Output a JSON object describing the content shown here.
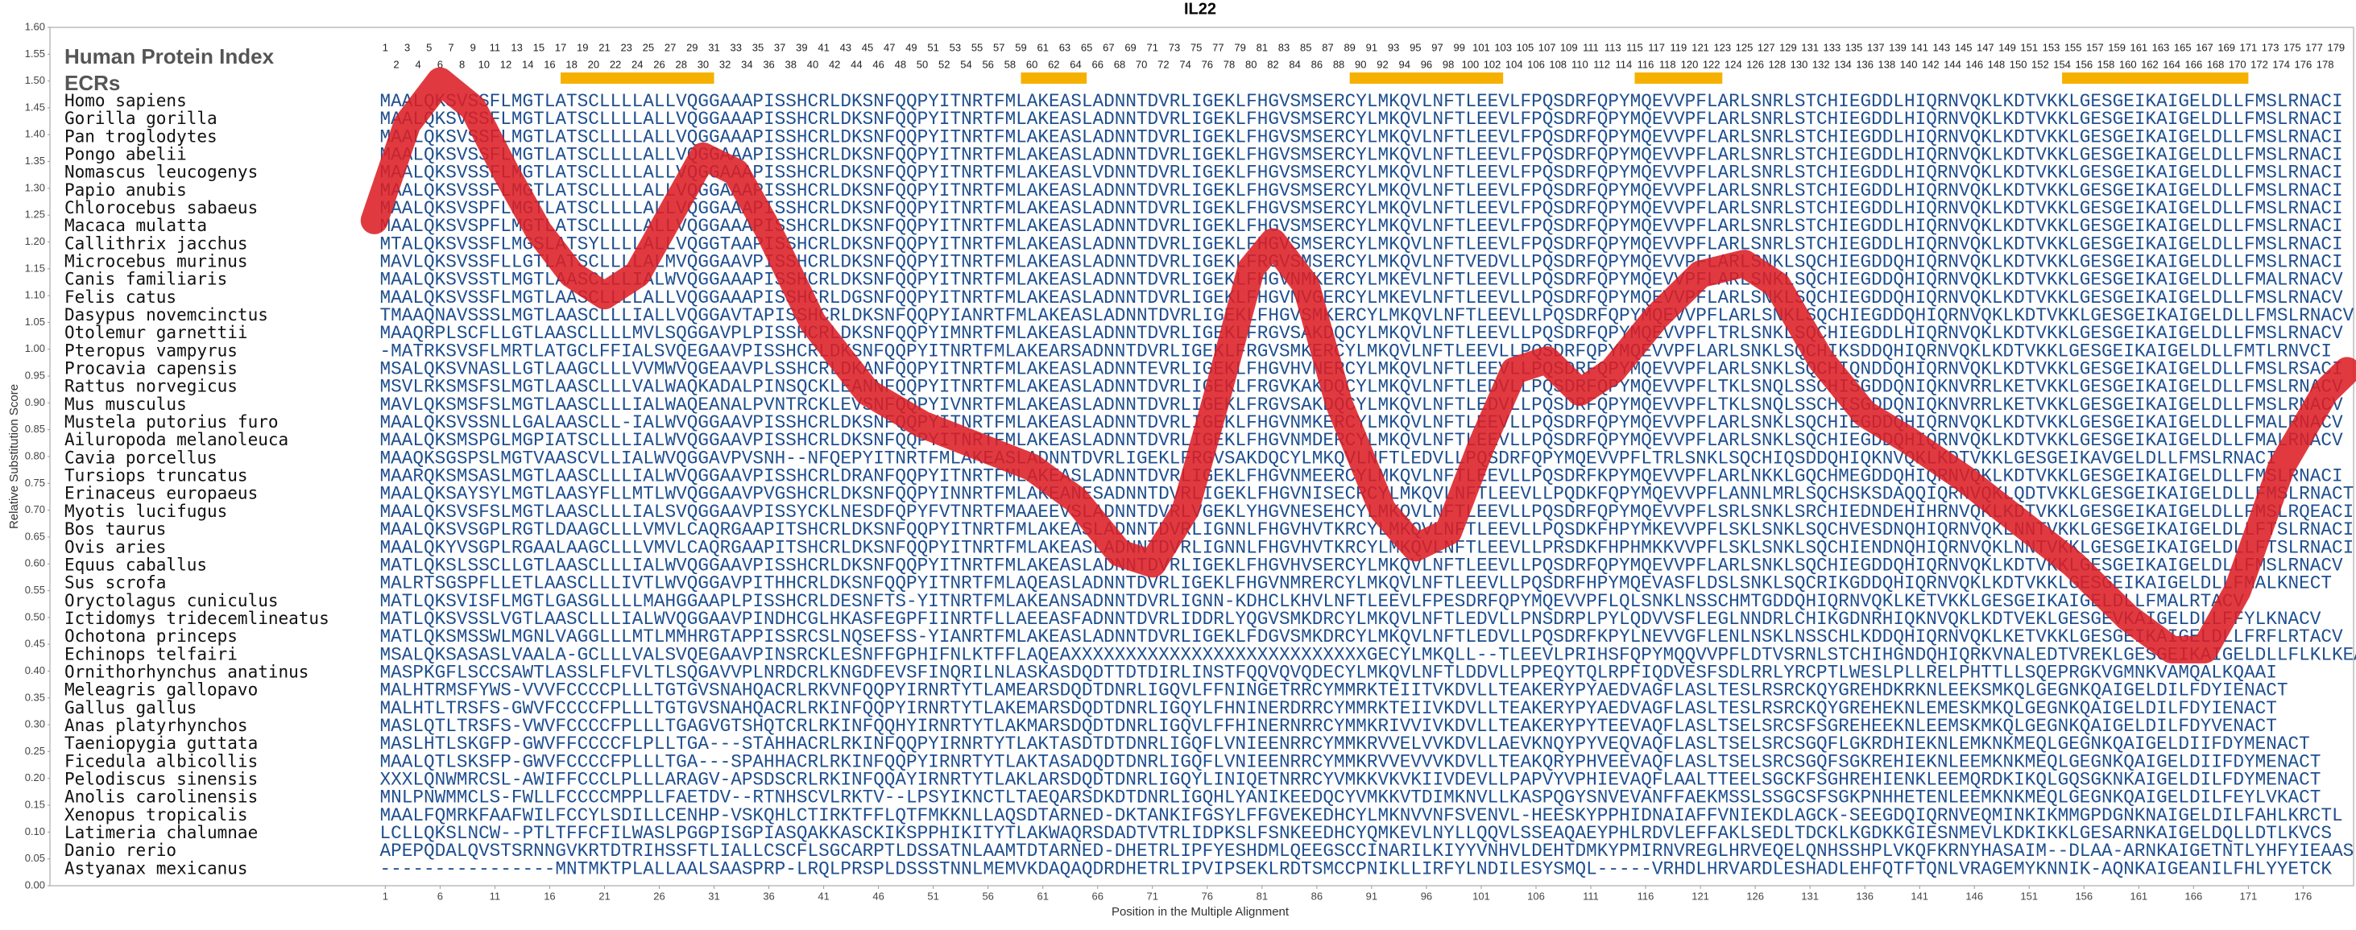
{
  "chart_data": {
    "type": "line",
    "title": "IL22",
    "y_label": "Relative Substitution Score",
    "x_label": "Position in the Multiple Alignment",
    "index_label": "Human Protein Index",
    "ecr_label": "ECRs",
    "color": "#dc1f26",
    "ecr_color": "#f6b100",
    "sequence_color": "#1f4f8f",
    "xlim": [
      -29.6,
      180.6
    ],
    "ylim": [
      0,
      1.6
    ],
    "xticks": [
      1,
      6,
      11,
      16,
      21,
      26,
      31,
      36,
      41,
      46,
      51,
      56,
      61,
      66,
      71,
      76,
      81,
      86,
      91,
      96,
      101,
      106,
      111,
      116,
      121,
      126,
      131,
      136,
      141,
      146,
      151,
      156,
      161,
      166,
      171,
      176
    ],
    "yticks": [
      {
        "value": 0,
        "label": "0.00"
      },
      {
        "value": 0.05,
        "label": "0.05"
      },
      {
        "value": 0.1,
        "label": "0.10"
      },
      {
        "value": 0.15,
        "label": "0.15"
      },
      {
        "value": 0.2,
        "label": "0.20"
      },
      {
        "value": 0.25,
        "label": "0.25"
      },
      {
        "value": 0.3,
        "label": "0.30"
      },
      {
        "value": 0.35,
        "label": "0.35"
      },
      {
        "value": 0.4,
        "label": "0.40"
      },
      {
        "value": 0.45,
        "label": "0.45"
      },
      {
        "value": 0.5,
        "label": "0.50"
      },
      {
        "value": 0.55,
        "label": "0.55"
      },
      {
        "value": 0.6,
        "label": "0.60"
      },
      {
        "value": 0.65,
        "label": "0.65"
      },
      {
        "value": 0.7,
        "label": "0.70"
      },
      {
        "value": 0.75,
        "label": "0.75"
      },
      {
        "value": 0.8,
        "label": "0.80"
      },
      {
        "value": 0.85,
        "label": "0.85"
      },
      {
        "value": 0.9,
        "label": "0.90"
      },
      {
        "value": 0.95,
        "label": "0.95"
      },
      {
        "value": 1,
        "label": "1.00"
      },
      {
        "value": 1.05,
        "label": "1.05"
      },
      {
        "value": 1.1,
        "label": "1.10"
      },
      {
        "value": 1.15,
        "label": "1.15"
      },
      {
        "value": 1.2,
        "label": "1.20"
      },
      {
        "value": 1.25,
        "label": "1.25"
      },
      {
        "value": 1.3,
        "label": "1.30"
      },
      {
        "value": 1.35,
        "label": "1.35"
      },
      {
        "value": 1.4,
        "label": "1.40"
      },
      {
        "value": 1.45,
        "label": "1.45"
      },
      {
        "value": 1.5,
        "label": "1.50"
      },
      {
        "value": 1.55,
        "label": "1.55"
      },
      {
        "value": 1.6,
        "label": "1.60"
      }
    ],
    "column_labels": [
      1,
      2,
      3,
      4,
      5,
      6,
      7,
      8,
      9,
      10,
      11,
      12,
      13,
      14,
      15,
      16,
      17,
      18,
      19,
      20,
      21,
      22,
      23,
      24,
      25,
      26,
      27,
      28,
      29,
      30,
      31,
      32,
      33,
      34,
      35,
      36,
      37,
      38,
      39,
      40,
      41,
      42,
      43,
      44,
      45,
      46,
      47,
      48,
      49,
      50,
      51,
      52,
      53,
      54,
      55,
      56,
      57,
      58,
      59,
      60,
      61,
      62,
      63,
      64,
      65,
      66,
      67,
      68,
      69,
      70,
      71,
      72,
      73,
      74,
      75,
      76,
      77,
      78,
      79,
      80,
      81,
      82,
      83,
      84,
      85,
      86,
      87,
      88,
      89,
      90,
      91,
      92,
      93,
      94,
      95,
      96,
      97,
      98,
      99,
      100,
      101,
      102,
      103,
      104,
      105,
      106,
      107,
      108,
      109,
      110,
      111,
      112,
      113,
      114,
      115,
      116,
      117,
      118,
      119,
      120,
      121,
      122,
      123,
      124,
      125,
      126,
      127,
      128,
      129,
      130,
      131,
      132,
      133,
      134,
      135,
      136,
      137,
      138,
      139,
      140,
      141,
      142,
      143,
      144,
      145,
      146,
      147,
      148,
      149,
      150,
      151,
      152,
      153,
      154,
      155,
      156,
      157,
      158,
      159,
      160,
      161,
      162,
      163,
      164,
      165,
      166,
      167,
      168,
      169,
      170,
      171,
      172,
      173,
      174,
      175,
      176,
      177,
      178,
      179
    ],
    "ecrs": [
      [
        17,
        31
      ],
      [
        59,
        65
      ],
      [
        89,
        103
      ],
      [
        115,
        123
      ],
      [
        154,
        171
      ]
    ],
    "x": [
      0,
      3,
      6,
      9,
      12,
      15,
      18,
      21,
      24,
      27,
      30,
      33,
      36,
      40,
      45,
      50,
      55,
      60,
      64,
      68,
      71,
      74,
      77,
      80,
      82,
      85,
      88,
      92,
      95,
      98,
      101,
      104,
      107,
      110,
      113,
      117,
      121,
      125,
      128,
      132,
      136,
      140,
      145,
      150,
      155,
      160,
      164,
      167,
      170,
      174,
      178,
      180
    ],
    "values": [
      1.24,
      1.42,
      1.5,
      1.45,
      1.33,
      1.22,
      1.14,
      1.1,
      1.14,
      1.25,
      1.36,
      1.33,
      1.22,
      1.05,
      0.92,
      0.86,
      0.82,
      0.78,
      0.72,
      0.62,
      0.6,
      0.7,
      0.92,
      1.15,
      1.2,
      1.12,
      0.9,
      0.7,
      0.63,
      0.66,
      0.82,
      0.96,
      0.98,
      0.92,
      0.96,
      1.06,
      1.14,
      1.16,
      1.12,
      0.98,
      0.88,
      0.83,
      0.76,
      0.68,
      0.6,
      0.5,
      0.44,
      0.44,
      0.55,
      0.78,
      0.92,
      0.96
    ],
    "alignment": [
      {
        "species": "Homo sapiens",
        "sequence": "MAALQKSVSSFLMGTLATSCLLLLALLVQGGAAAPISSHCRLDKSNFQQPYITNRTFMLAKEASLADNNTDVRLIGEKLFHGVSMSERCYLMKQVLNFTLEEVLFPQSDRFQPYMQEVVPFLARLSNRLSTCHIEGDDLHIQRNVQKLKDTVKKLGESGEIKAIGELDLLFMSLRNACI"
      },
      {
        "species": "Gorilla gorilla",
        "sequence": "MAALQKSVSSFLMGTLATSCLLLLALLVQGGAAAPISSHCRLDKSNFQQPYITNRTFMLAKEASLADNNTDVRLIGEKLFHGVSMSERCYLMKQVLNFTLEEVLFPQSDRFQPYMQEVVPFLARLSNRLSTCHIEGDDLHIQRNVQKLKDTVKKLGESGEIKAIGELDLLFMSLRNACI"
      },
      {
        "species": "Pan troglodytes",
        "sequence": "MAALQKSVSSFLMGTLATSCLLLLALLVQGGAAAPISSHCRLDKSNFQQPYITNRTFMLAKEASLADNNTDVRLIGEKLFHGVSMSERCYLMKQVLNFTLEEVLFPQSDRFQPYMQEVVPFLARLSNRLSTCHIEGDDLHIQRNVQKLKDTVKKLGESGEIKAIGELDLLFMSLRNACI"
      },
      {
        "species": "Pongo abelii",
        "sequence": "MAALQKSVSSFLMGTLATSCLLLLALLVQGGAAAPISSHCRLDKSNFQQPYITNRTFMLAKEASLADNNTDVRLIGEKLFHGVSMSERCYLMKQVLNFTLEEVLFPQSDRFQPYMQEVVPFLARLSNRLSTCHIEGDDLHIQRNVQKLKDTVKKLGESGEIKAIGELDLLFMSLRNACI"
      },
      {
        "species": "Nomascus leucogenys",
        "sequence": "MAALQKSVSSFLMGTLATSCLLLLALLVQGGAAAPISSHCRLDKSNFQQPYITNRTFMLAKEASLVDNNTDVRLIGEKLFHGVSMSERCYLMKQVLNFTLEEVLFPQSDRFQPYMQEVVPFLARLSNRLSTCHIEGDDLHIQRNVQKLKDTVKKLGESGEIKAIGELDLLFMSLRNACI"
      },
      {
        "species": "Papio anubis",
        "sequence": "MAALQKSVSSFLMGTLATSCLLLLALLVQGGAAAPISSHCRLDKSNFQQPYITNRTFMLAKEASLADNNTDVRLIGEKLFHGVSMSERCYLMKQVLNFTLEEVLFPQSDRFQPYMQEVVPFLARLSNRLSTCHIEGDDLHIQRNVQKLKDTVKKLGESGEIKAIGELDLLFMSLRNACI"
      },
      {
        "species": "Chlorocebus sabaeus",
        "sequence": "MAALQKSVSPFLMGTLATSCLLLLALLVQGGAAAPISSHCRLDKSNFQQPYITNRTFMLAKEASLADNNTDVRLIGEKLFHGVSMSERCYLMKQVLNFTLEEVLFPQSDRFQPYMQEVVPFLARLSNRLSTCHIEGDDLHIQRNVQKLKDTVKKLGESGEIKAIGELDLLFMSLRNACI"
      },
      {
        "species": "Macaca mulatta",
        "sequence": "MAALQKSVSPFLMGTLATSCLLLLALLVQGGAAAPISSHCRLDKSNFQQPYITNRTFMLAKEASLADNNTDVRLIGEKLFHGVSMSERCYLMKQVLNFTLEEVLFPQSDRFQPYMQEVVPFLARLSNRLSTCHIEGDDLHIQRNVQKLKDTVKKLGESGEIKAIGELDLLFMSLRNACI"
      },
      {
        "species": "Callithrix jacchus",
        "sequence": "MTALQKSVSSFLMGSLATSYLLLLALLVQGGTAAPISSHCRLDKSNFQQPYITNRTFMLAKEASLADNNTDVRLIGEKLFHGVSMSERCYLMKQVLNFTLEEVLFPQSDRFQPYMQEVVPFLARLSNRLSTCHIEGDDLHIQRNVQKLKDTVKKLGESGEIKAIGELDLLFMSLRNACI"
      },
      {
        "species": "Microcebus murinus",
        "sequence": "MAVLQKSVSSFLLGTLATSCLLLLALMVQGGAAVPISSHCRLDKSNFQQPYITNRTFMLAKEASLADNNTDVRLIGEKLFRGVSMSERCYLMKQVLNFTVEDVLLPQSDRFQPYMQEVVPFLARLSNKLSQCHIEGDDQHIQRNVQKLKDTVKKLGESGEIKAIGELDLLFMSLRNACI"
      },
      {
        "species": "Canis familiaris",
        "sequence": "MAALQKSVSSTLMGTLAASCLLLIALWVQGGAAAPISSHCRLDKSNFQQPYITNRTFMLAKEASLADNNTDVRLIGEKLFHGVNMKERCYLMKEVLNFTLEEVLLPQSDRFQPYMQEVVPFLARLSNKLSQCHIEGDDQHIQRNVQKLKDTVKKLGESGEIKAIGELDLLFMALRNACV"
      },
      {
        "species": "Felis catus",
        "sequence": "MAALQKSVSSFLMGTLAASCLLLLALLVQGGAAAPISSHCRLDGSNFQQPYITNRTFMLAKEASLADNNTDVRLIGEKLFHGVNVGERCYLMKEVLNFTLEEVLLPQSDRFQPYMQEVVPFLARLSNKLSQCHIEGDDQHIQRNVQKLKDTVKKLGESGEIKAIGELDLLFMSLRNACV"
      },
      {
        "species": "Dasypus novemcinctus",
        "sequence": "TMAAQNAVSSSLMGTLAASCLLLIALLVQGGAVTAPISSHCRLDKSNFQQPYIANRTFMLAKEASLADNNTDVRLIGEKLFHGVSMKERCYLMKQVLNFTLEEVLLPQSDRFQPYMQEVVPFLARLSNKLSQCHIEGDDQHIQRNVQKLKDTVKKLGESGEIKAIGELDLLFMSLRNACV"
      },
      {
        "species": "Otolemur garnettii",
        "sequence": "MAAQRPLSCFLLGTLAASCLLLLMVLSQGGAVPLPISSHCRLDKSNFQQPYIMNRTFMLAKEASLADNNTDVRLIGEKLFRGVSAKDQCYLMKQVLNFTLEEVLLPQSDRFQPYMQEVVPFLTRLSNKLSQCHIEGDDLHIQRNVQKLKDTVKKLGESGEIKAIGELDLLFMSLRNACV"
      },
      {
        "species": "Pteropus vampyrus",
        "sequence": "-MATRKSVSFLMRTLATGCLFFIALSVQEGAAVPISSHCRLDKSNFQQPYITNRTFMLAKEARSADNNTDVRLIGEKLFRGVSMKERCYLMKQVLNFTLEEVLLPQSDRFQPYMQEVVPFLARLSNKLSQCHIKSDDQHIQRNVQKLKDTVKKLGESGEIKAIGELDLLFMTLRNVCI"
      },
      {
        "species": "Procavia capensis",
        "sequence": "MSALQKSVNASLLGTLAAGCLLLVVMWVQGEAAVPLSSHCRLDKANFQQPYITNRTFMLAKEASLADNNTEVRLIGEKLFHGVHVNERCYLMKQVLNFTLEEVLLPQSDRFQPYMQEVVPFLARLSNKLSQCHIQNDDQHIQRNVQKLKDTVKKLGESGEIKAIGELDLLFMSLRSACI"
      },
      {
        "species": "Rattus norvegicus",
        "sequence": "MSVLRKSMSFSLMGTLAASCLLLVALWAQKADALPINSQCKLEANNFQQPYITNRTFMLAKEASLADNNTDVRLIGEKLFRGVKAKDQCYLMKQVLNFTLEDVLLPQSDRFQPYMQEVVPFLTKLSNQLSSCHISGDDQNIQKNVRRLKETVKKLGESGEIKAIGELDLLFMSLRNACV"
      },
      {
        "species": "Mus musculus",
        "sequence": "MAVLQKSMSFSLMGTLAASCLLLIALWAQEANALPVNTRCKLEVSNFQQPYIVNRTFMLAKEASLADNNTDVRLIGEKLFRGVSAKDQCYLMKQVLNFTLEDVLLPQSDRFQPYMQEVVPFLTKLSNQLSSCHISGDDQNIQKNVRRLKETVKKLGESGEIKAIGELDLLFMSLRNACV"
      },
      {
        "species": "Mustela putorius furo",
        "sequence": "MAALQKSVSSNLLGALAASCLL-IALWVQGGAAVPISSHCRLDKSNFQQPYITNRTFMLAKEASLADNNTDVRLIGEKLFHGVNMKERCYLMKQVLNFTLEEVLLPQSDRFQPYMQEVVPFLARLSNKLSQCHIEGDDQHIQRNVQKLKDTVKKLGESGEIKAIGELDLLFMALRNACV"
      },
      {
        "species": "Ailuropoda melanoleuca",
        "sequence": "MAALQKSMSPGLMGPIATSCLLLIALWVQGGAAVPISSHCRLDKSNFQQPYITNRTFMLAKEASLADNNTDVRLIGEKLFHGVNMDERCYLMKQVLNFTLEEVLLPQSDRFQPYMQEVVPFLARLSNKLSQCHIEGDDQHIQRNVQKLKDTVKKLGESGEIKAIGELDLLFMALRNACV"
      },
      {
        "species": "Cavia porcellus",
        "sequence": "MAAQKSGSPSLMGTVAASCVLLIALWVQGGAVPVSNH--NFQEPYITNRTFMLAKEASLADNNTDVRLIGEKLFRGVSAKDQCYLMKQVLNFTLEDVLLPQSDRFQPYMQEVVPFLTRLSNKLSQCHIQSDDQHIQKNVQKLKDTVKKLGESGEIKAVGELDLLFMSLRNACI"
      },
      {
        "species": "Tursiops truncatus",
        "sequence": "MAARQKSMSASLMGTLAASCLLLIALWVQGGAAVPISSHCRLDRANFQQPYITNRTFMLAKEASLADNNTDVRLIGEKLFHGVNMEERCYLMKQVLNFTLEEVLLPQSDRFKPYMQEVVPFLARLNKKLGQCHMEGDDQHIQRNVQKLKDTVKKLGESGEIKAIGELDLLFMSLRNACI"
      },
      {
        "species": "Erinaceus europaeus",
        "sequence": "MAALQKSAYSYLMGTLAASYFLLMTLWVQGGAAVPVGSHCRLDKSNFQQPYINNRTFMLAKEANESADNNTDVRLIGEKLFHGVNISECRCYLMKQVLNFTLEEVLLPQDKFQPYMQEVVPFLANNLMRLSQCHSKSDAQQIQRNVQKLQDTVKKLGESGEIKAIGELDLLFMSLRNACT"
      },
      {
        "species": "Myotis lucifugus",
        "sequence": "MAALQKSVSFSLMGTLAASCLLLIALSVQGGAAVPISSYCKLNESDFQPYFVTNRTFMAAEEVSLADNNTDVRLVGEKLYHGVNESEHCYLMKQVLNFTLEEVLLPQSDRFQPYMQEVVPFLSRLSNKLSRCHIEDNDEHIHRNVQKLKDTVKKLGESGEIKAIGELDLLFMSLRQEACI"
      },
      {
        "species": "Bos taurus",
        "sequence": "MAALQKSVSGPLRGTLDAAGCLLLVMVLCAQRGAAPITSHCRLDKSNFQQPYITNRTFMLAKEASLADNNTDVRLIGNNLFHGVHVTKRCYLMKQVLNFTLEEVLLPQSDKFHPYMKEVVPFLSKLSNKLSQCHVESDNQHIQRNVQKLNNTVKKLGESGEIKAIGELDLLFTSLRNACI"
      },
      {
        "species": "Ovis aries",
        "sequence": "MAALQKYVSGPLRGAALAAGCLLLVMVLCAQRGAAPITSHCRLDKSNFQQPYITNRTFMLAKEASLADNNTDVRLIGNNLFHGVHVTKRCYLMKQVLNFTLEEVLLPRSDKFHPHMKKVVPFLSKLSNKLSQCHIENDNQHIQRNVQKLNNTVKKLGESGEIKAIGELDLLFTSLRNACI"
      },
      {
        "species": "Equus caballus",
        "sequence": "MATLQKSLSSCLLGTLAASCLLLIALWVQGGAAVPISSHCRLDKSNFQQPYITNRTFMLAKEASLADNNTDVRLIGEKLFHGVHVSERCYLMKQVLNFTLEEVLLPQSDRFQPYMQEVVPFLARLSNKLSQCHIEGDDQHIQRNVQKLKDTVKKLGESGEIKAIGELDLLFMSLRNACV"
      },
      {
        "species": "Sus scrofa",
        "sequence": "MALRTSGSPFLLETLAASCLLLIVTLWVQGGAVPITHHCRLDKSNFQQPYITNRTFMLAQEASLADNNTDVRLIGEKLFHGVNMRERCYLMKQVLNFTLEEVLLPQSDRFHPYMQEVASFLDSLSNKLSQCRIKGDDQHIQRNVQKLKDTVKKLGESGEIKAIGELDLLFMALKNECT"
      },
      {
        "species": "Oryctolagus cuniculus",
        "sequence": "MATLQKSVISFLMGTLGASGLLLLMAHGGAAPLPISSHCRLDESNFTS-YITNRTFMLAKEANSADNNTDVRLIGNN-KDHCLKHVLNFTLEEVLFPESDRFQPYMQEVVPFLQLSNKLNSSCHMTGDDQHIQRNVQKLKETVKKLGESGEIKAIGELDLLFMALRTACV"
      },
      {
        "species": "Ictidomys tridecemlineatus",
        "sequence": "MATLQKSVSSLVGTLAASCLLLIALWVQGGAAVPINDHCGLHKASFEGPFIINRTFLLAEEASFADNNTDVRLIDDRLYQGVSMKDRCYLMKQVLNFTLEDVLLPNSDRPLPYLQDVVSFLEGLNNDRLCHIKGDNRHIQKNVQKLKDTVEKLGESGEVKAIGELDLLFFYLKNACV"
      },
      {
        "species": "Ochotona princeps",
        "sequence": "MATLQKSMSSWLMGNLVAGGLLLMTLMMHRGTAPPISSRCSLNQSEFSS-YIANRTFMLAKEASLADNNTDVRLIGEKLFDGVSMKDRCYLMKQVLNFTLEDVLLPQSDRFKPYLNEVVGFLENLNSKLNSSCHLKDDQHIQRNVQKLKETVKKLGESGEIKAIGELDLLFRFLRTACV"
      },
      {
        "species": "Echinops telfairi",
        "sequence": "MSALQKSASASLVAALA-GCLLLVALSVQEGAAVPINSRCKLESNFFGPHIFNLKTFFLAQEAXXXXXXXXXXXXXXXXXXXXXXXXXXXGECYLMKQLL--TLEEVLPRIHSFQPYMQQVVPFLDTVSRNLSTCHIHGNDQHIQRKVNALEDTVREKLGESGEIKAIGELDLLFLKLKEACV"
      },
      {
        "species": "Ornithorhynchus anatinus",
        "sequence": "MASPKGFLSCCSAWTLASSLFLFVLTLSQGAVVPLNRDCRLKNGDFEVSFINQRILNLASKASDQDTTDTDIRLINSTFQQVQVQDECYLMKQVLNFTLDDVLLPPEQYTQLRPFIQDVESFSDLRRLYRCPTLWESLPLLRELPHTTLLSQEPRGKVGMNKVAMQALKQAAI"
      },
      {
        "species": "Meleagris gallopavo",
        "sequence": "MALHTRMSFYWS-VVVFCCCCPLLLTGTGVSNAHQACRLRKVNFQQPYIRNRTYTLAMEARSDQDTDNRLIGQVLFFNINGETRRCYMMRKTEIITVKDVLLTEAKERYPYAEDVAGFLASLTESLRSRCKQYGREHDKRKNLEEKSMKQLGEGNKQAIGELDILFDYIENACT"
      },
      {
        "species": "Gallus gallus",
        "sequence": "MALHTLTRSFS-GWVFCCCCFPLLLTGTGVSNAHQACRLRKINFQQPYIRNRTYTLAKEMARSDQDTDNRLIGQYLFHNINERDRRCYMMRKTEIIVKDVLLTEAKERYPYAEDVAGFLASLTESLRSRCKQYGREHEKNLEMESKMKQLGEGNKQAIGELDILFDYIENACT"
      },
      {
        "species": "Anas platyrhynchos",
        "sequence": "MASLQTLTRSFS-VWVFCCCCFPLLLTGAGVGTSHQTCRLRKINFQQHYIRNRTYTLAKMARSDQDTDNRLIGQVLFFHINERNRRCYMMKRIVVIVKDVLLTEAKERYPYTEEVAQFLASLTSELSRCSFSGREHEEKNLEEMSKMKQLGEGNKQAIGELDILFDYVENACT"
      },
      {
        "species": "Taeniopygia guttata",
        "sequence": "MASLHTLSKGFP-GWVFFCCCCFLPLLTGA---STAHHACRLRKINFQQPYIRNRTYTLAKTASDTDTDNRLIGQFLVNIEENRRCYMMKRVVELVVKDVLLAEVKNQYPYVEQVAQFLASLTSELSRCSGQFLGKRDHIEKNLEMKNKMEQLGEGNKQAIGELDIIFDYMENACT"
      },
      {
        "species": "Ficedula albicollis",
        "sequence": "MAALQTLSKSFP-GWVFCCCCFPLLLTGA---SPAHHACRLRKINFQQPYIRNRTYTLAKTASADQDTDNRLIGQFLVNIEENRRCYMMKRVVEVVVKDVLLTEAKQRYPHVEEVAQFLASLTSELSRCSGQFSGKREHIEKNLEEMKNKMEQLGEGNKQAIGELDIIFDYMENACT"
      },
      {
        "species": "Pelodiscus sinensis",
        "sequence": "XXXLQNWMRCSL-AWIFFCCCLPLLLARAGV-APSDSCRLRKINFQQAYIRNRTYTLAKLARSDQDTDNRLIGQYLINIQETNRRCYVMKKVKVKIIVDEVLLPAPVYVPHIEVAQFLAALTTEELSGCKFSGHREHIENKLEEMQRDKIKQLGQSGKNKAIGELDILFDYMENACT"
      },
      {
        "species": "Anolis carolinensis",
        "sequence": "MNLPNWMMCLS-FWLLFCCCCMPPLLFAETDV--RTNHSCVLRKTV--LPSYIKNCTLTAEQARSDKDTDNRLIGQHLYANIKEEDQCYVMKKVTDIMKNVLLKASPQGYSNVEVANFFAEKMSSLSSGCSFSGKPNHHETENLEEMKNKMEQLGEGNKQAIGELDILFEYLVKACT"
      },
      {
        "species": "Xenopus tropicalis",
        "sequence": "MAALFQMRKFAAFWILFCCYLSDILLCENHP-VSKQHLCTIRKTFFLQTFMKKNLLAQSDTARNED-DKTANKIFGSYLFFGVEKEDHCYLMKNVVNFSVENVL-HEESKYPPHIDNAIAFFVNIEKDLAGCK-SEEGDQIQRNVEQMINKIKMMGPDGNKNAIGELDILFAHLKRCTL"
      },
      {
        "species": "Latimeria chalumnae",
        "sequence": "LCLLQKSLNCW--PTLTFFCFILWASLPGGPISGPIASQAKKASCKIKSPPHIKITYTLAKWAQRSDADTVTRLIDPKSLFSNKEEDHCYQMKEVLNYLLQQVLSSEAQAEYPHLRDVLEFFAKLSEDLTDCKLKGDKKGIESNMEVLKDKIKKLGESARNKAIGELDQLLDTLKVCS"
      },
      {
        "species": "Danio rerio",
        "sequence": "APEPQDALQVSTSRNNGVKRTDTRIHSSFTLIALLCSCFLSGCARPTLDSSATNLAAMTDTARNED-DHETRLIPFYESHDMLQEEGSCCINARILKIYYVNHVLDEHTDMKYPMIRNVREGLHRVEQELQNHSSHPLVKQFKRNYHASAIM--DLAA-ARNKAIGETNTLYHFYIEAAS"
      },
      {
        "species": "Astyanax mexicanus",
        "sequence": "----------------MNTMKTPLALLAALSAASPRP-LRQLPRSPLDSSSTNNLMEMVKDAQAQDRDHETRLIPVIPSEKLRDTSMCCPNIKLLIRFYLNDILESYSMQL-----VRHDLHRVARDLESHADLEHFQTFTQNLVRAGEMYKNNIK-AQNKAIGEANILFHLYYETCK"
      }
    ]
  }
}
